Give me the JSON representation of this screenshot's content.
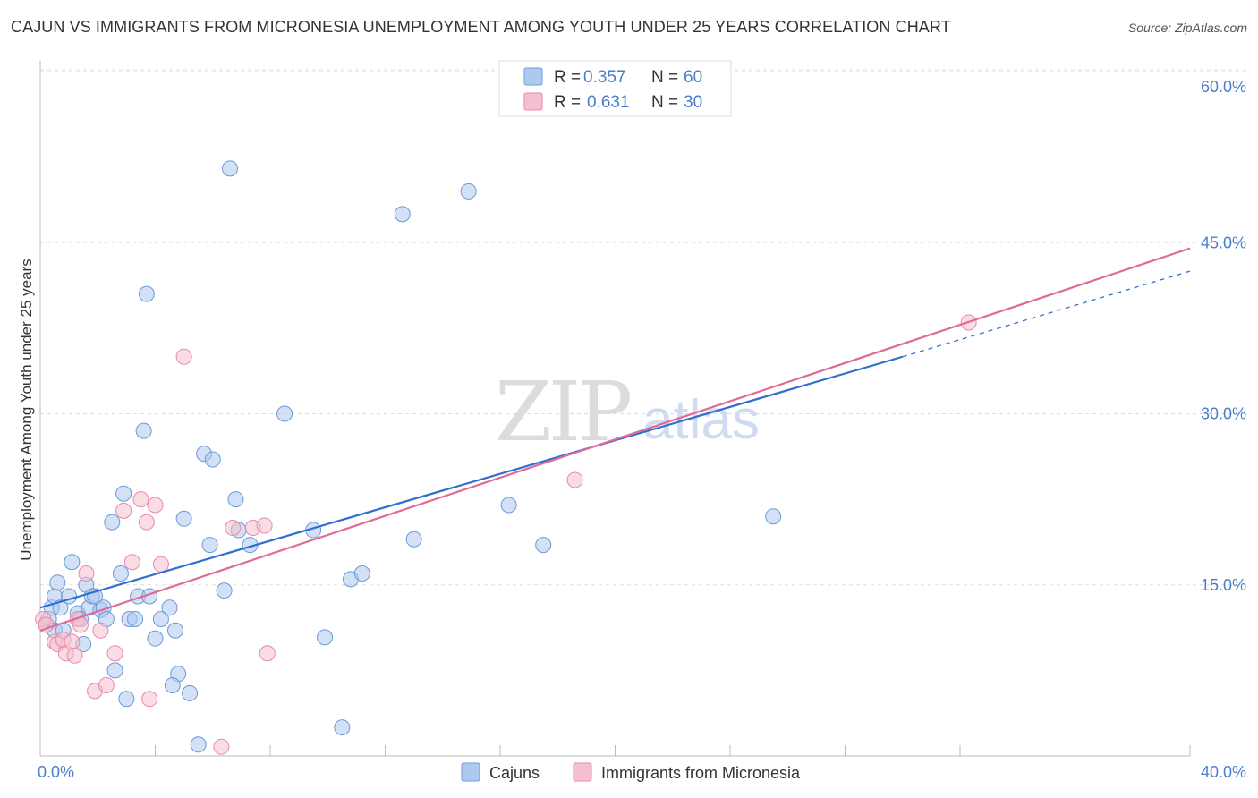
{
  "title": "CAJUN VS IMMIGRANTS FROM MICRONESIA UNEMPLOYMENT AMONG YOUTH UNDER 25 YEARS CORRELATION CHART",
  "source": "Source: ZipAtlas.com",
  "watermark": {
    "part1": "ZIP",
    "part2": "atlas"
  },
  "colors": {
    "blue_fill": "#adc9ef",
    "blue_stroke": "#6d9ad8",
    "blue_line": "#2f6fd1",
    "pink_fill": "#f6bfd0",
    "pink_stroke": "#e98aa8",
    "pink_line": "#e06a96",
    "accent_text": "#4a7ec9",
    "grid": "#dddddd"
  },
  "legend": {
    "entries": [
      {
        "r_label": "R =",
        "r_value": "0.357",
        "n_label": "N =",
        "n_value": "60"
      },
      {
        "r_label": "R =",
        "r_value": "0.631",
        "n_label": "N =",
        "n_value": "30"
      }
    ]
  },
  "bottom_legend": [
    "Cajuns",
    "Immigrants from Micronesia"
  ],
  "chart_data": {
    "type": "scatter",
    "title": "CAJUN VS IMMIGRANTS FROM MICRONESIA UNEMPLOYMENT AMONG YOUTH UNDER 25 YEARS CORRELATION CHART",
    "xlabel": "",
    "ylabel": "Unemployment Among Youth under 25 years",
    "xlim": [
      0,
      40
    ],
    "ylim": [
      0,
      60
    ],
    "x_tick_labels": [
      "0.0%",
      "40.0%"
    ],
    "y_ticks": [
      15,
      30,
      45,
      60
    ],
    "y_tick_labels": [
      "15.0%",
      "30.0%",
      "45.0%",
      "60.0%"
    ],
    "grid": true,
    "series": [
      {
        "name": "Cajuns",
        "r": 0.357,
        "n": 60,
        "trend": {
          "x0": 0,
          "y0": 13.0,
          "x1": 30.0,
          "y1": 35.0,
          "dashed_to_x": 40,
          "dashed_to_y": 42.5
        },
        "points": [
          [
            0.2,
            11.5
          ],
          [
            0.3,
            12.0
          ],
          [
            0.4,
            13.0
          ],
          [
            0.5,
            11.0
          ],
          [
            0.5,
            14.0
          ],
          [
            0.6,
            15.2
          ],
          [
            0.7,
            13.0
          ],
          [
            0.8,
            11.0
          ],
          [
            1.0,
            14.0
          ],
          [
            1.1,
            17.0
          ],
          [
            1.3,
            12.5
          ],
          [
            1.4,
            12.0
          ],
          [
            1.5,
            9.8
          ],
          [
            1.6,
            15.0
          ],
          [
            1.7,
            13.0
          ],
          [
            1.8,
            14.0
          ],
          [
            1.9,
            14.0
          ],
          [
            2.1,
            12.8
          ],
          [
            2.2,
            13.0
          ],
          [
            2.3,
            12.0
          ],
          [
            2.5,
            20.5
          ],
          [
            2.6,
            7.5
          ],
          [
            2.8,
            16.0
          ],
          [
            2.9,
            23.0
          ],
          [
            3.0,
            5.0
          ],
          [
            3.1,
            12.0
          ],
          [
            3.3,
            12.0
          ],
          [
            3.4,
            14.0
          ],
          [
            3.6,
            28.5
          ],
          [
            3.7,
            40.5
          ],
          [
            3.8,
            14.0
          ],
          [
            4.0,
            10.3
          ],
          [
            4.2,
            12.0
          ],
          [
            4.5,
            13.0
          ],
          [
            4.7,
            11.0
          ],
          [
            4.8,
            7.2
          ],
          [
            4.6,
            6.2
          ],
          [
            5.2,
            5.5
          ],
          [
            5.0,
            20.8
          ],
          [
            5.5,
            1.0
          ],
          [
            5.7,
            26.5
          ],
          [
            5.9,
            18.5
          ],
          [
            6.0,
            26.0
          ],
          [
            6.4,
            14.5
          ],
          [
            6.6,
            51.5
          ],
          [
            6.8,
            22.5
          ],
          [
            6.9,
            19.8
          ],
          [
            7.3,
            18.5
          ],
          [
            8.5,
            30.0
          ],
          [
            9.5,
            19.8
          ],
          [
            9.9,
            10.4
          ],
          [
            10.5,
            2.5
          ],
          [
            10.8,
            15.5
          ],
          [
            11.2,
            16.0
          ],
          [
            12.6,
            47.5
          ],
          [
            13.0,
            19.0
          ],
          [
            14.9,
            49.5
          ],
          [
            16.3,
            22.0
          ],
          [
            17.5,
            18.5
          ],
          [
            25.5,
            21.0
          ]
        ]
      },
      {
        "name": "Immigrants from Micronesia",
        "r": 0.631,
        "n": 30,
        "trend": {
          "x0": 0,
          "y0": 11.0,
          "x1": 40,
          "y1": 44.5
        },
        "points": [
          [
            0.1,
            12.0
          ],
          [
            0.2,
            11.5
          ],
          [
            0.5,
            10.0
          ],
          [
            0.6,
            9.8
          ],
          [
            0.8,
            10.2
          ],
          [
            0.9,
            9.0
          ],
          [
            1.1,
            10.0
          ],
          [
            1.2,
            8.8
          ],
          [
            1.3,
            12.0
          ],
          [
            1.4,
            11.5
          ],
          [
            1.6,
            16.0
          ],
          [
            1.9,
            5.7
          ],
          [
            2.1,
            11.0
          ],
          [
            2.3,
            6.2
          ],
          [
            2.6,
            9.0
          ],
          [
            2.9,
            21.5
          ],
          [
            3.2,
            17.0
          ],
          [
            3.5,
            22.5
          ],
          [
            3.7,
            20.5
          ],
          [
            3.8,
            5.0
          ],
          [
            4.0,
            22.0
          ],
          [
            4.2,
            16.8
          ],
          [
            5.0,
            35.0
          ],
          [
            6.3,
            0.8
          ],
          [
            6.7,
            20.0
          ],
          [
            7.4,
            20.0
          ],
          [
            7.8,
            20.2
          ],
          [
            7.9,
            9.0
          ],
          [
            18.6,
            24.2
          ],
          [
            32.3,
            38.0
          ]
        ]
      }
    ]
  }
}
